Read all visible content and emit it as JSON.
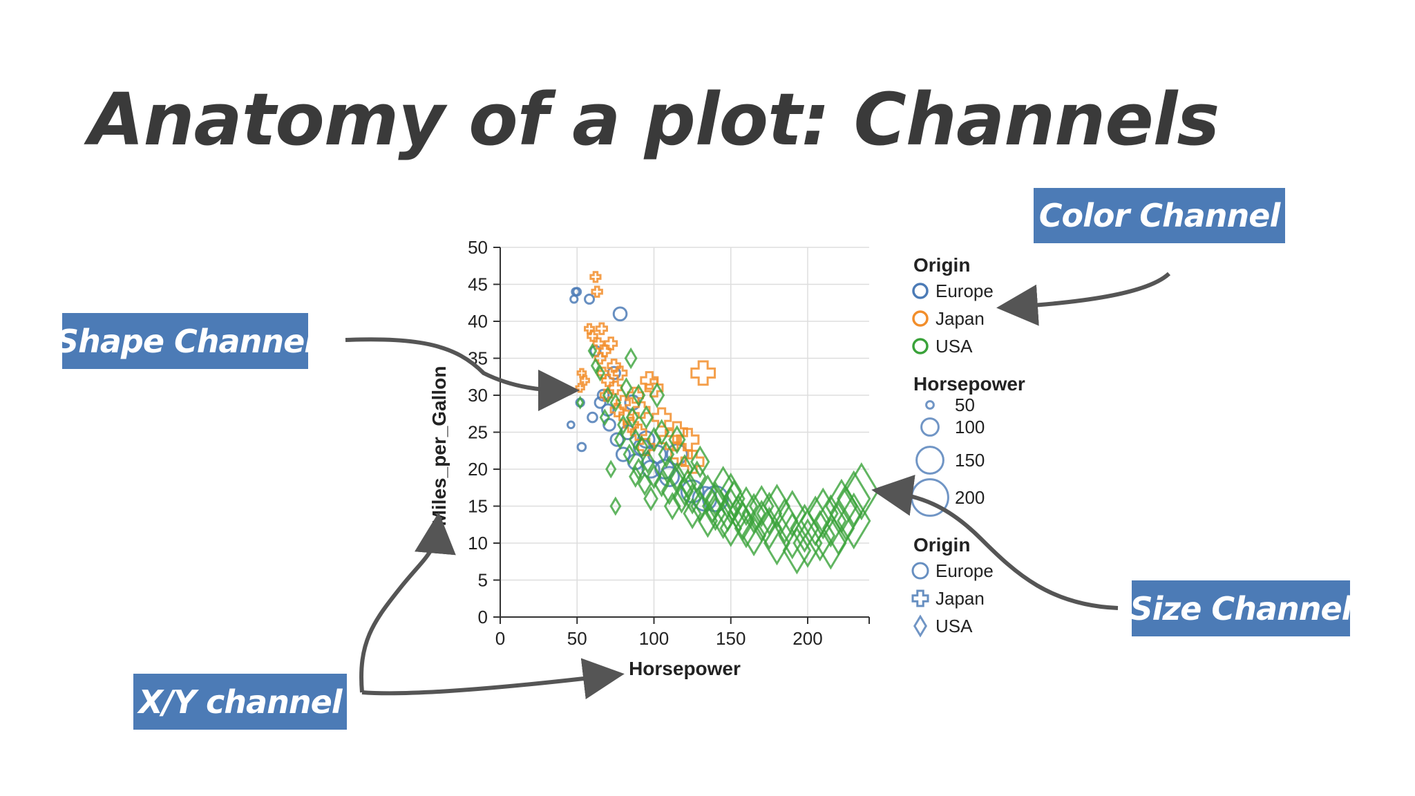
{
  "slide": {
    "title": "Anatomy of a plot: Channels"
  },
  "callouts": {
    "color": "Color Channel",
    "shape": "Shape Channel",
    "size": "Size Channel",
    "xy": "X/Y channel"
  },
  "colors": {
    "Europe": "#4c7bb6",
    "Japan": "#f28e2b",
    "USA": "#3aa23a",
    "callout_bg": "#4c7bb6",
    "arrow": "#555555"
  },
  "chart_data": {
    "type": "scatter",
    "xlabel": "Horsepower",
    "ylabel": "Miles_per_Gallon",
    "xlim": [
      0,
      240
    ],
    "ylim": [
      0,
      50
    ],
    "xticks": [
      0,
      50,
      100,
      150,
      200
    ],
    "yticks": [
      0,
      5,
      10,
      15,
      20,
      25,
      30,
      35,
      40,
      45,
      50
    ],
    "grid": true,
    "legends": [
      {
        "title": "Origin",
        "channel": "color",
        "entries": [
          "Europe",
          "Japan",
          "USA"
        ]
      },
      {
        "title": "Horsepower",
        "channel": "size",
        "entries": [
          "50",
          "100",
          "150",
          "200"
        ]
      },
      {
        "title": "Origin",
        "channel": "shape",
        "entries": [
          "Europe",
          "Japan",
          "USA"
        ],
        "shapes": [
          "circle",
          "cross",
          "diamond"
        ]
      }
    ],
    "series": [
      {
        "name": "Europe",
        "shape": "circle",
        "points": [
          [
            46,
            26
          ],
          [
            48,
            43
          ],
          [
            49,
            44
          ],
          [
            50,
            44
          ],
          [
            52,
            29
          ],
          [
            53,
            23
          ],
          [
            58,
            43
          ],
          [
            60,
            27
          ],
          [
            62,
            36
          ],
          [
            65,
            29
          ],
          [
            67,
            30
          ],
          [
            70,
            28
          ],
          [
            71,
            26
          ],
          [
            74,
            33
          ],
          [
            76,
            24
          ],
          [
            78,
            41
          ],
          [
            80,
            22
          ],
          [
            83,
            25
          ],
          [
            86,
            29
          ],
          [
            88,
            21
          ],
          [
            92,
            23
          ],
          [
            95,
            24
          ],
          [
            98,
            20
          ],
          [
            102,
            22
          ],
          [
            107,
            20
          ],
          [
            110,
            19
          ],
          [
            115,
            22
          ],
          [
            125,
            17
          ],
          [
            133,
            16
          ],
          [
            140,
            16
          ]
        ]
      },
      {
        "name": "Japan",
        "shape": "cross",
        "points": [
          [
            52,
            31
          ],
          [
            53,
            33
          ],
          [
            55,
            32
          ],
          [
            58,
            39
          ],
          [
            60,
            38
          ],
          [
            62,
            46
          ],
          [
            63,
            44
          ],
          [
            64,
            37
          ],
          [
            65,
            35
          ],
          [
            66,
            39
          ],
          [
            67,
            33
          ],
          [
            68,
            36
          ],
          [
            69,
            30
          ],
          [
            70,
            32
          ],
          [
            72,
            37
          ],
          [
            74,
            34
          ],
          [
            75,
            31
          ],
          [
            76,
            28
          ],
          [
            78,
            33
          ],
          [
            80,
            29
          ],
          [
            82,
            27
          ],
          [
            85,
            26
          ],
          [
            88,
            30
          ],
          [
            90,
            25
          ],
          [
            92,
            28
          ],
          [
            95,
            23
          ],
          [
            97,
            32
          ],
          [
            100,
            31
          ],
          [
            105,
            27
          ],
          [
            110,
            24
          ],
          [
            115,
            25
          ],
          [
            118,
            22
          ],
          [
            122,
            24
          ],
          [
            125,
            21
          ],
          [
            132,
            33
          ]
        ]
      },
      {
        "name": "USA",
        "shape": "diamond",
        "points": [
          [
            52,
            29
          ],
          [
            60,
            36
          ],
          [
            62,
            34
          ],
          [
            65,
            33
          ],
          [
            68,
            27
          ],
          [
            70,
            30
          ],
          [
            72,
            20
          ],
          [
            75,
            29
          ],
          [
            78,
            24
          ],
          [
            80,
            26
          ],
          [
            82,
            31
          ],
          [
            84,
            22
          ],
          [
            85,
            35
          ],
          [
            86,
            27
          ],
          [
            88,
            19
          ],
          [
            88,
            24
          ],
          [
            90,
            30
          ],
          [
            90,
            20
          ],
          [
            92,
            23
          ],
          [
            94,
            18
          ],
          [
            95,
            27
          ],
          [
            96,
            21
          ],
          [
            98,
            16
          ],
          [
            100,
            24
          ],
          [
            100,
            19
          ],
          [
            102,
            30
          ],
          [
            105,
            18
          ],
          [
            105,
            25
          ],
          [
            108,
            22
          ],
          [
            110,
            17
          ],
          [
            110,
            20
          ],
          [
            112,
            15
          ],
          [
            115,
            19
          ],
          [
            115,
            24
          ],
          [
            118,
            16
          ],
          [
            120,
            20
          ],
          [
            120,
            17
          ],
          [
            122,
            18
          ],
          [
            125,
            14
          ],
          [
            125,
            16
          ],
          [
            128,
            19
          ],
          [
            130,
            15
          ],
          [
            130,
            21
          ],
          [
            135,
            13
          ],
          [
            135,
            17
          ],
          [
            138,
            15
          ],
          [
            140,
            14
          ],
          [
            140,
            16
          ],
          [
            145,
            13
          ],
          [
            145,
            18
          ],
          [
            148,
            14
          ],
          [
            150,
            12
          ],
          [
            150,
            15
          ],
          [
            150,
            17
          ],
          [
            152,
            16
          ],
          [
            155,
            14
          ],
          [
            158,
            13
          ],
          [
            160,
            15
          ],
          [
            160,
            12
          ],
          [
            165,
            14
          ],
          [
            165,
            11
          ],
          [
            170,
            15
          ],
          [
            170,
            13
          ],
          [
            175,
            12
          ],
          [
            175,
            14
          ],
          [
            180,
            10
          ],
          [
            180,
            15
          ],
          [
            185,
            13
          ],
          [
            190,
            11
          ],
          [
            190,
            14
          ],
          [
            193,
            9
          ],
          [
            198,
            12
          ],
          [
            200,
            10
          ],
          [
            205,
            13
          ],
          [
            208,
            11
          ],
          [
            210,
            14
          ],
          [
            215,
            10
          ],
          [
            215,
            13
          ],
          [
            220,
            12
          ],
          [
            222,
            15
          ],
          [
            225,
            14
          ],
          [
            230,
            13
          ],
          [
            230,
            16
          ],
          [
            235,
            17
          ],
          [
            75,
            15
          ]
        ]
      }
    ]
  }
}
